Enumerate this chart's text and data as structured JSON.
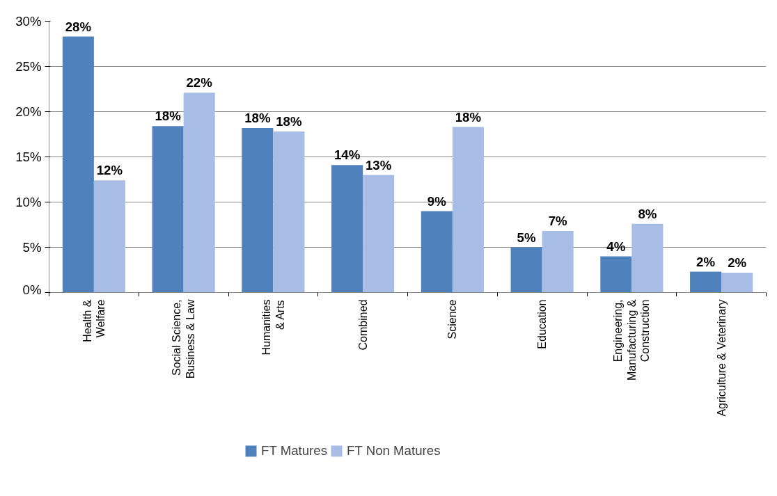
{
  "chart_data": {
    "type": "bar",
    "categories": [
      "Health &\nWelfare",
      "Social Science,\nBusiness & Law",
      "Humanities\n& Arts",
      "Combined",
      "Science",
      "Education",
      "Engineering,\nManufacturing &\nConstruction",
      "Agriculture & Veterinary"
    ],
    "series": [
      {
        "name": "FT Matures",
        "color": "#4f81bd",
        "values": [
          28.3,
          18.4,
          18.2,
          14.1,
          9.0,
          5.0,
          4.0,
          2.3
        ],
        "value_labels": [
          "28%",
          "18%",
          "18%",
          "14%",
          "9%",
          "5%",
          "4%",
          "2%"
        ]
      },
      {
        "name": "FT Non Matures",
        "color": "#a7bde6",
        "values": [
          12.4,
          22.1,
          17.8,
          13.0,
          18.3,
          6.8,
          7.6,
          2.2
        ],
        "value_labels": [
          "12%",
          "22%",
          "18%",
          "13%",
          "18%",
          "7%",
          "8%",
          "2%"
        ]
      }
    ],
    "ylim": [
      0,
      30
    ],
    "yticks": [
      {
        "value": 0,
        "label": "0%"
      },
      {
        "value": 5,
        "label": "5%"
      },
      {
        "value": 10,
        "label": "10%"
      },
      {
        "value": 15,
        "label": "15%"
      },
      {
        "value": 20,
        "label": "20%"
      },
      {
        "value": 25,
        "label": "25%"
      },
      {
        "value": 30,
        "label": "30%"
      }
    ],
    "grid": "y",
    "legend": "bottom"
  }
}
